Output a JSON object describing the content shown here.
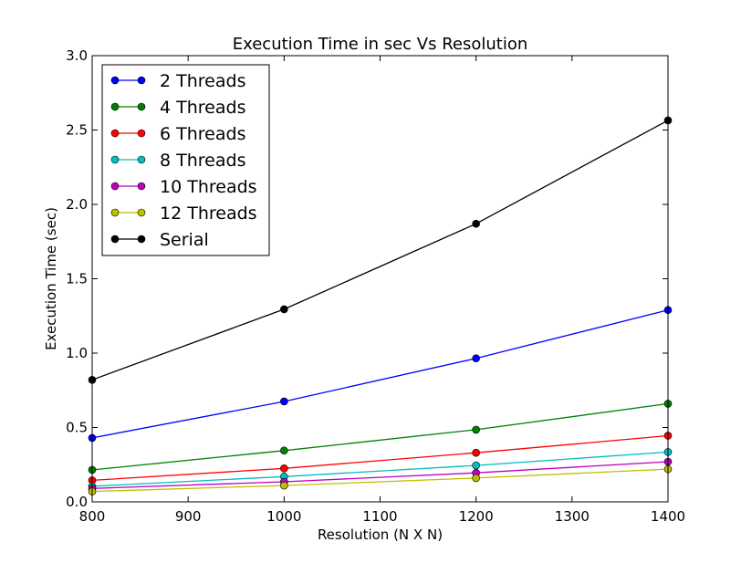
{
  "chart_data": {
    "type": "line",
    "title": "Execution Time in sec Vs Resolution",
    "xlabel": "Resolution (N X N)",
    "ylabel": "Execution Time (sec)",
    "xlim": [
      800,
      1400
    ],
    "ylim": [
      0.0,
      3.0
    ],
    "xticks": [
      800,
      900,
      1000,
      1100,
      1200,
      1300,
      1400
    ],
    "xtick_labels": [
      "800",
      "900",
      "1000",
      "1100",
      "1200",
      "1300",
      "1400"
    ],
    "yticks": [
      0.0,
      0.5,
      1.0,
      1.5,
      2.0,
      2.5,
      3.0
    ],
    "ytick_labels": [
      "0.0",
      "0.5",
      "1.0",
      "1.5",
      "2.0",
      "2.5",
      "3.0"
    ],
    "grid": false,
    "legend_position": "top-left",
    "x": [
      800,
      1000,
      1200,
      1400
    ],
    "series": [
      {
        "name": "2 Threads",
        "color": "#0000ff",
        "values": [
          0.43,
          0.675,
          0.965,
          1.29
        ]
      },
      {
        "name": "4 Threads",
        "color": "#008000",
        "values": [
          0.215,
          0.345,
          0.485,
          0.66
        ]
      },
      {
        "name": "6 Threads",
        "color": "#ff0000",
        "values": [
          0.145,
          0.225,
          0.33,
          0.445
        ]
      },
      {
        "name": "8 Threads",
        "color": "#00bfbf",
        "values": [
          0.105,
          0.17,
          0.245,
          0.335
        ]
      },
      {
        "name": "10 Threads",
        "color": "#bf00bf",
        "values": [
          0.09,
          0.135,
          0.195,
          0.27
        ]
      },
      {
        "name": "12 Threads",
        "color": "#bfbf00",
        "values": [
          0.07,
          0.11,
          0.16,
          0.22
        ]
      },
      {
        "name": "Serial",
        "color": "#000000",
        "values": [
          0.82,
          1.295,
          1.87,
          2.565
        ]
      }
    ]
  }
}
